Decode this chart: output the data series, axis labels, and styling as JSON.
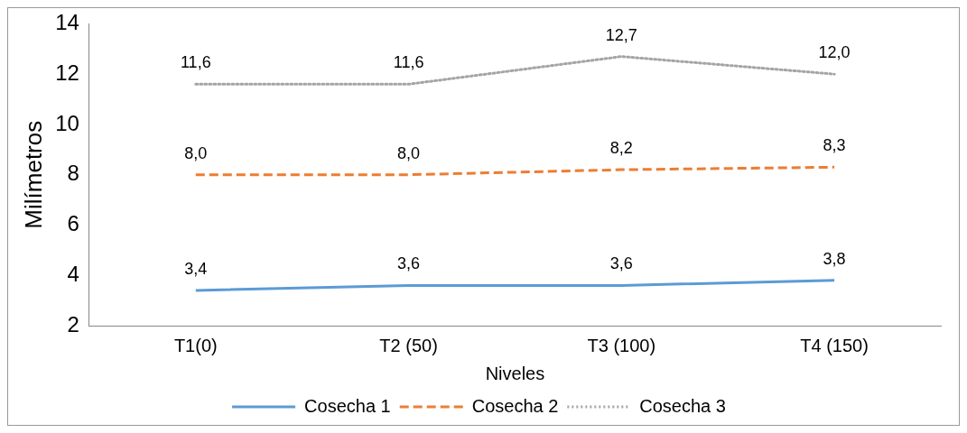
{
  "chart_data": {
    "type": "line",
    "xlabel": "Niveles",
    "ylabel": "Milímetros",
    "categories": [
      "T1(0)",
      "T2 (50)",
      "T3 (100)",
      "T4 (150)"
    ],
    "series": [
      {
        "name": "Cosecha 1",
        "color": "#5b9bd5",
        "line_style": "solid",
        "values": [
          3.4,
          3.6,
          3.6,
          3.8
        ],
        "value_labels": [
          "3,4",
          "3,6",
          "3,6",
          "3,8"
        ]
      },
      {
        "name": "Cosecha 2",
        "color": "#ed7d31",
        "line_style": "dashed",
        "values": [
          8.0,
          8.0,
          8.2,
          8.3
        ],
        "value_labels": [
          "8,0",
          "8,0",
          "8,2",
          "8,3"
        ]
      },
      {
        "name": "Cosecha 3",
        "color": "#a5a5a5",
        "line_style": "dotted",
        "values": [
          11.6,
          11.6,
          12.7,
          12.0
        ],
        "value_labels": [
          "11,6",
          "11,6",
          "12,7",
          "12,0"
        ]
      }
    ],
    "ylim": [
      2,
      14
    ],
    "yticks": [
      2,
      4,
      6,
      8,
      10,
      12,
      14
    ],
    "grid": false,
    "legend": "bottom",
    "marker": "none"
  }
}
